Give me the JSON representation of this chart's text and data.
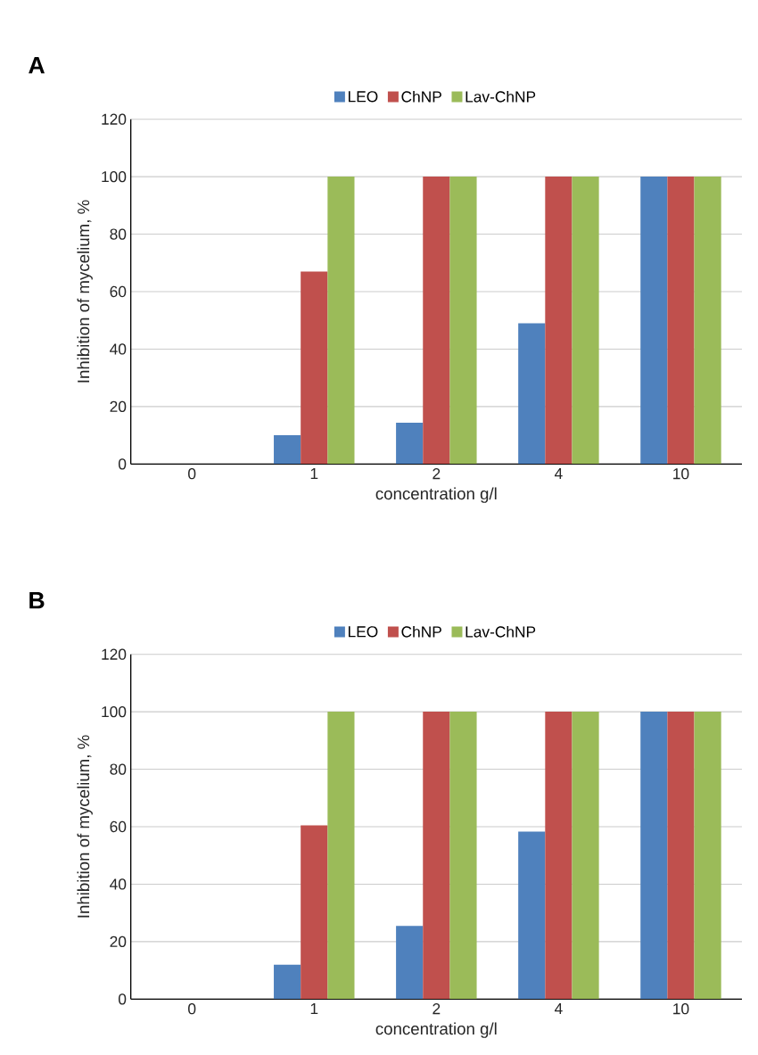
{
  "chart_data": [
    {
      "type": "bar",
      "title": "A",
      "xlabel": "concentration g/l",
      "ylabel": "Inhibition of mycelium, %",
      "categories": [
        "0",
        "1",
        "2",
        "4",
        "10"
      ],
      "series": [
        {
          "name": "LEO",
          "color": "#4f81bd",
          "values": [
            0,
            10,
            14.4,
            49,
            100
          ]
        },
        {
          "name": "ChNP",
          "color": "#c0504d",
          "values": [
            0,
            67,
            100,
            100,
            100
          ]
        },
        {
          "name": "Lav-ChNP",
          "color": "#9bbb59",
          "values": [
            0,
            100,
            100,
            100,
            100
          ]
        }
      ],
      "ylim": [
        0,
        120
      ],
      "yticks": [
        0,
        20,
        40,
        60,
        80,
        100,
        120
      ],
      "grid": "y",
      "legend": "top"
    },
    {
      "type": "bar",
      "title": "B",
      "xlabel": "concentration g/l",
      "ylabel": "Inhibition of mycelium, %",
      "categories": [
        "0",
        "1",
        "2",
        "4",
        "10"
      ],
      "series": [
        {
          "name": "LEO",
          "color": "#4f81bd",
          "values": [
            0,
            12,
            25.5,
            58.3,
            100
          ]
        },
        {
          "name": "ChNP",
          "color": "#c0504d",
          "values": [
            0,
            60.5,
            100,
            100,
            100
          ]
        },
        {
          "name": "Lav-ChNP",
          "color": "#9bbb59",
          "values": [
            0,
            100,
            100,
            100,
            100
          ]
        }
      ],
      "ylim": [
        0,
        120
      ],
      "yticks": [
        0,
        20,
        40,
        60,
        80,
        100,
        120
      ],
      "grid": "y",
      "legend": "top"
    }
  ]
}
